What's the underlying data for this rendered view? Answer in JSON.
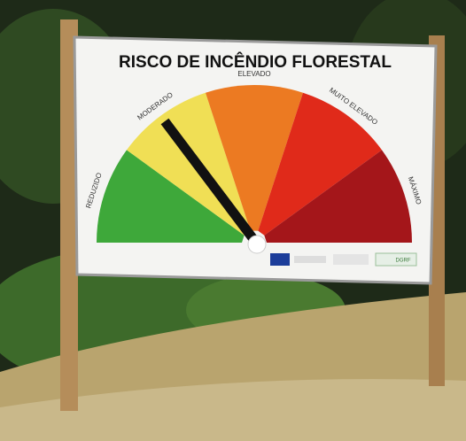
{
  "sign": {
    "title": "RISCO DE INCÊNDIO FLORESTAL",
    "levels": [
      "REDUZIDO",
      "MODERADO",
      "ELEVADO",
      "MUITO ELEVADO",
      "MÁXIMO"
    ],
    "logo": "DGRF"
  }
}
